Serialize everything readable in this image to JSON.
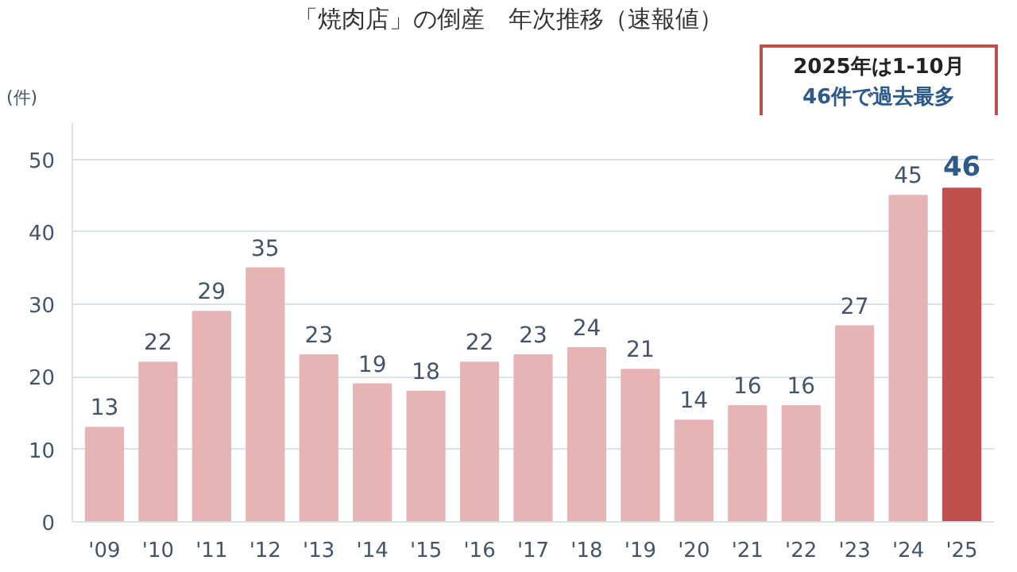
{
  "chart_data": {
    "type": "bar",
    "title": "「焼肉店」の倒産　年次推移（速報値）",
    "ylabel": "(件)",
    "categories": [
      "'09",
      "'10",
      "'11",
      "'12",
      "'13",
      "'14",
      "'15",
      "'16",
      "'17",
      "'18",
      "'19",
      "'20",
      "'21",
      "'22",
      "'23",
      "'24",
      "'25"
    ],
    "values": [
      13,
      22,
      29,
      35,
      23,
      19,
      18,
      22,
      23,
      24,
      21,
      14,
      16,
      16,
      27,
      45,
      46
    ],
    "colors": [
      "#e6b4b4",
      "#e6b4b4",
      "#e6b4b4",
      "#e6b4b4",
      "#e6b4b4",
      "#e6b4b4",
      "#e6b4b4",
      "#e6b4b4",
      "#e6b4b4",
      "#e6b4b4",
      "#e6b4b4",
      "#e6b4b4",
      "#e6b4b4",
      "#e6b4b4",
      "#e6b4b4",
      "#e6b4b4",
      "#c0504d"
    ],
    "ylim": [
      0,
      55
    ],
    "yticks": [
      0,
      10,
      20,
      30,
      40,
      50
    ],
    "grid": "y",
    "data_labels": true,
    "annotations": [
      "2025年は1-10月",
      "46件で過去最多"
    ]
  }
}
